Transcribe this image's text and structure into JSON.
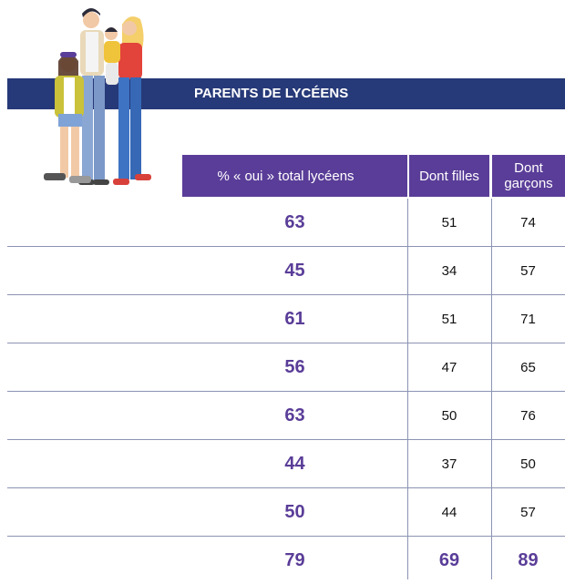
{
  "header": {
    "title": "PARENTS DE LYCÉENS"
  },
  "table": {
    "columns": [
      "% « oui » total lycéens",
      "Dont filles",
      "Dont garçons"
    ],
    "rows": [
      [
        63,
        51,
        74
      ],
      [
        45,
        34,
        57
      ],
      [
        61,
        51,
        71
      ],
      [
        56,
        47,
        65
      ],
      [
        63,
        50,
        76
      ],
      [
        44,
        37,
        50
      ],
      [
        50,
        44,
        57
      ],
      [
        79,
        69,
        89
      ]
    ]
  }
}
